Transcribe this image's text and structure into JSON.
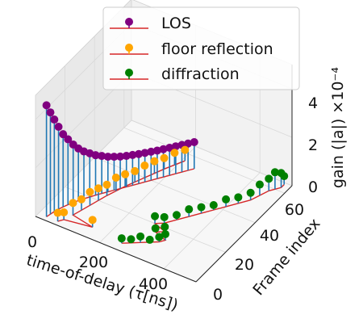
{
  "chart_data": {
    "type": "scatter",
    "subtype": "3d-stem",
    "title": "",
    "xlabel": "time-of-delay (τ[ns])",
    "ylabel": "Frame index",
    "zlabel": "gain (|a|) ×10⁻⁴",
    "xlim": [
      0,
      500
    ],
    "ylim": [
      0,
      65
    ],
    "zlim": [
      0,
      5
    ],
    "xticks": [
      "0",
      "200",
      "400"
    ],
    "yticks": [
      "0",
      "20",
      "40",
      "60"
    ],
    "zticks": [
      "0",
      "2",
      "4"
    ],
    "grid": true,
    "legend_position": "top-center",
    "legend": [
      "LOS",
      "floor reflection",
      "diffraction"
    ],
    "colors": {
      "los": "#800080",
      "floor": "#ffa500",
      "diffraction": "#008000",
      "stem": "#1f77b4",
      "baseline": "#d62728"
    },
    "series": [
      {
        "name": "LOS",
        "points": [
          {
            "x": 25,
            "y": 2,
            "z": 4.6
          },
          {
            "x": 28,
            "y": 4,
            "z": 4.2
          },
          {
            "x": 31,
            "y": 6,
            "z": 3.8
          },
          {
            "x": 35,
            "y": 8,
            "z": 3.4
          },
          {
            "x": 40,
            "y": 10,
            "z": 3.0
          },
          {
            "x": 46,
            "y": 12,
            "z": 2.7
          },
          {
            "x": 53,
            "y": 14,
            "z": 2.4
          },
          {
            "x": 60,
            "y": 16,
            "z": 2.15
          },
          {
            "x": 68,
            "y": 18,
            "z": 1.95
          },
          {
            "x": 77,
            "y": 20,
            "z": 1.8
          },
          {
            "x": 86,
            "y": 22,
            "z": 1.65
          },
          {
            "x": 96,
            "y": 24,
            "z": 1.55
          },
          {
            "x": 106,
            "y": 26,
            "z": 1.45
          },
          {
            "x": 116,
            "y": 28,
            "z": 1.38
          },
          {
            "x": 126,
            "y": 30,
            "z": 1.32
          },
          {
            "x": 136,
            "y": 32,
            "z": 1.28
          },
          {
            "x": 146,
            "y": 34,
            "z": 1.25
          },
          {
            "x": 156,
            "y": 36,
            "z": 1.22
          },
          {
            "x": 166,
            "y": 38,
            "z": 1.2
          },
          {
            "x": 176,
            "y": 40,
            "z": 1.18
          },
          {
            "x": 186,
            "y": 42,
            "z": 1.16
          },
          {
            "x": 196,
            "y": 44,
            "z": 1.15
          },
          {
            "x": 206,
            "y": 46,
            "z": 1.14
          },
          {
            "x": 216,
            "y": 48,
            "z": 1.13
          },
          {
            "x": 226,
            "y": 50,
            "z": 1.12
          },
          {
            "x": 236,
            "y": 52,
            "z": 1.11
          },
          {
            "x": 246,
            "y": 54,
            "z": 1.1
          }
        ]
      },
      {
        "name": "floor reflection",
        "points": [
          {
            "x": 70,
            "y": 4,
            "z": 0.3
          },
          {
            "x": 80,
            "y": 8,
            "z": 0.5
          },
          {
            "x": 88,
            "y": 12,
            "z": 0.45
          },
          {
            "x": 96,
            "y": 16,
            "z": 0.55
          },
          {
            "x": 104,
            "y": 20,
            "z": 0.5
          },
          {
            "x": 112,
            "y": 24,
            "z": 0.45
          },
          {
            "x": 122,
            "y": 28,
            "z": 0.55
          },
          {
            "x": 132,
            "y": 32,
            "z": 0.5
          },
          {
            "x": 144,
            "y": 36,
            "z": 0.45
          },
          {
            "x": 156,
            "y": 40,
            "z": 0.5
          },
          {
            "x": 168,
            "y": 44,
            "z": 0.5
          },
          {
            "x": 180,
            "y": 48,
            "z": 0.45
          },
          {
            "x": 194,
            "y": 52,
            "z": 0.5
          },
          {
            "x": 208,
            "y": 56,
            "z": 0.45
          },
          {
            "x": 60,
            "y": 2,
            "z": 0.35
          },
          {
            "x": 150,
            "y": 6,
            "z": 0.3
          }
        ]
      },
      {
        "name": "diffraction",
        "points": [
          {
            "x": 250,
            "y": 4,
            "z": 0.2
          },
          {
            "x": 270,
            "y": 6,
            "z": 0.15
          },
          {
            "x": 290,
            "y": 8,
            "z": 0.25
          },
          {
            "x": 310,
            "y": 10,
            "z": 0.1
          },
          {
            "x": 330,
            "y": 12,
            "z": 0.2
          },
          {
            "x": 340,
            "y": 14,
            "z": 0.25
          },
          {
            "x": 300,
            "y": 16,
            "z": 0.15
          },
          {
            "x": 320,
            "y": 18,
            "z": 0.2
          },
          {
            "x": 280,
            "y": 20,
            "z": 0.3
          },
          {
            "x": 300,
            "y": 22,
            "z": 0.25
          },
          {
            "x": 320,
            "y": 26,
            "z": 0.2
          },
          {
            "x": 340,
            "y": 30,
            "z": 0.3
          },
          {
            "x": 360,
            "y": 34,
            "z": 0.25
          },
          {
            "x": 380,
            "y": 38,
            "z": 0.2
          },
          {
            "x": 400,
            "y": 42,
            "z": 0.3
          },
          {
            "x": 420,
            "y": 46,
            "z": 0.25
          },
          {
            "x": 440,
            "y": 50,
            "z": 0.3
          },
          {
            "x": 450,
            "y": 54,
            "z": 0.45
          },
          {
            "x": 460,
            "y": 58,
            "z": 0.5
          },
          {
            "x": 470,
            "y": 60,
            "z": 0.7
          },
          {
            "x": 480,
            "y": 62,
            "z": 0.6
          },
          {
            "x": 480,
            "y": 64,
            "z": 0.35
          }
        ]
      }
    ]
  }
}
